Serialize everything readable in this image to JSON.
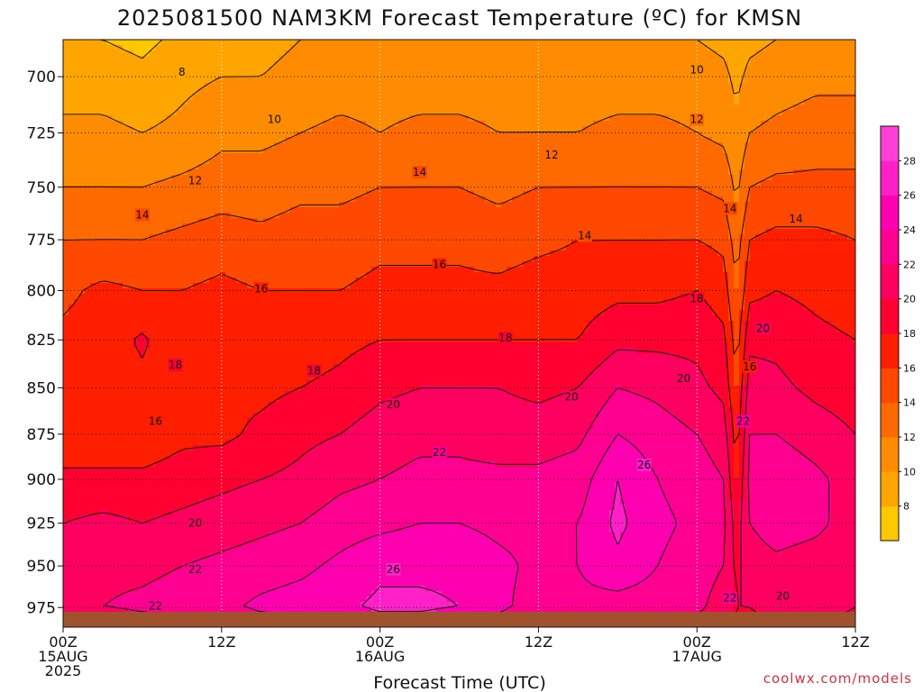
{
  "chart_data": {
    "type": "heatmap",
    "title": "2025081500 NAM3KM Forecast Temperature (ºC) for KMSN",
    "xlabel": "Forecast Time (UTC)",
    "ylabel": "",
    "credit": "coolwx.com/models",
    "x_ticks": [
      {
        "hour": 0,
        "lines": [
          "00Z",
          "15AUG",
          "2025"
        ]
      },
      {
        "hour": 12,
        "lines": [
          "12Z"
        ]
      },
      {
        "hour": 24,
        "lines": [
          "00Z",
          "16AUG"
        ]
      },
      {
        "hour": 36,
        "lines": [
          "12Z"
        ]
      },
      {
        "hour": 48,
        "lines": [
          "00Z",
          "17AUG"
        ]
      },
      {
        "hour": 60,
        "lines": [
          "12Z"
        ]
      }
    ],
    "xlim": [
      0,
      60
    ],
    "y_ticks": [
      700,
      725,
      750,
      775,
      800,
      825,
      850,
      875,
      900,
      925,
      950,
      975
    ],
    "ylim": [
      684,
      987
    ],
    "y_scale": "log-pressure",
    "colorbar_ticks": [
      8,
      10,
      12,
      14,
      16,
      18,
      20,
      22,
      24,
      26,
      28
    ],
    "colorbar_range": [
      6,
      30
    ],
    "colors": [
      "#ffc800",
      "#ffa500",
      "#ff8c00",
      "#ff6a00",
      "#ff4800",
      "#ff1e00",
      "#ff0030",
      "#ff0060",
      "#ff0090",
      "#ff00b0",
      "#ff20c8",
      "#ff40d8"
    ],
    "ground_color": "#a0522d",
    "temperature_profiles": [
      {
        "hour": 0,
        "p": [
          684,
          700,
          725,
          750,
          775,
          800,
          825,
          850,
          875,
          900,
          925,
          950,
          975,
          987
        ],
        "t": [
          8.0,
          9.0,
          10.5,
          12.0,
          14.0,
          15.5,
          16.5,
          17.0,
          16.5,
          18.5,
          20.0,
          21.0,
          22.0,
          20.0
        ]
      },
      {
        "hour": 3,
        "p": [
          684,
          700,
          725,
          750,
          775,
          800,
          825,
          850,
          875,
          900,
          925,
          950,
          975,
          987
        ],
        "t": [
          8.0,
          9.0,
          10.5,
          12.0,
          14.0,
          16.5,
          17.0,
          17.0,
          16.5,
          18.5,
          20.5,
          21.5,
          22.0,
          19.5
        ]
      },
      {
        "hour": 6,
        "p": [
          684,
          700,
          725,
          750,
          775,
          800,
          825,
          850,
          875,
          900,
          925,
          950,
          975,
          987
        ],
        "t": [
          7.5,
          8.5,
          10.0,
          12.0,
          14.0,
          16.0,
          18.3,
          17.5,
          16.5,
          18.5,
          20.0,
          21.5,
          22.5,
          20.0
        ]
      },
      {
        "hour": 9,
        "p": [
          684,
          700,
          725,
          750,
          775,
          800,
          825,
          850,
          875,
          900,
          925,
          950,
          975,
          987
        ],
        "t": [
          8.5,
          9.5,
          10.5,
          12.5,
          14.5,
          16.0,
          16.5,
          17.0,
          17.5,
          19.0,
          20.5,
          22.0,
          23.0,
          21.0
        ]
      },
      {
        "hour": 12,
        "p": [
          684,
          700,
          725,
          750,
          775,
          800,
          825,
          850,
          875,
          900,
          925,
          950,
          975,
          987
        ],
        "t": [
          9.0,
          10.0,
          11.5,
          13.0,
          15.0,
          16.5,
          17.0,
          17.5,
          17.5,
          19.5,
          21.0,
          22.5,
          23.5,
          22.0
        ]
      },
      {
        "hour": 15,
        "p": [
          684,
          700,
          725,
          750,
          775,
          800,
          825,
          850,
          875,
          900,
          925,
          950,
          975,
          987
        ],
        "t": [
          9.5,
          10.0,
          11.5,
          13.0,
          14.5,
          16.0,
          16.5,
          17.5,
          18.5,
          20.0,
          21.5,
          23.0,
          24.5,
          22.0
        ]
      },
      {
        "hour": 18,
        "p": [
          684,
          700,
          725,
          750,
          775,
          800,
          825,
          850,
          875,
          900,
          925,
          950,
          975,
          987
        ],
        "t": [
          10.0,
          10.5,
          12.0,
          13.5,
          15.0,
          16.0,
          17.0,
          18.0,
          19.5,
          20.5,
          22.0,
          23.5,
          25.0,
          23.0
        ]
      },
      {
        "hour": 21,
        "p": [
          684,
          700,
          725,
          750,
          775,
          800,
          825,
          850,
          875,
          900,
          925,
          950,
          975,
          987
        ],
        "t": [
          10.5,
          11.0,
          12.5,
          13.5,
          15.0,
          16.0,
          17.5,
          18.5,
          20.0,
          21.5,
          23.0,
          24.5,
          25.5,
          23.5
        ]
      },
      {
        "hour": 24,
        "p": [
          684,
          700,
          725,
          750,
          775,
          800,
          825,
          850,
          875,
          900,
          925,
          950,
          975,
          987
        ],
        "t": [
          10.0,
          11.0,
          12.0,
          14.0,
          15.5,
          16.5,
          18.0,
          19.5,
          21.0,
          22.0,
          23.5,
          25.5,
          26.5,
          24.0
        ]
      },
      {
        "hour": 27,
        "p": [
          684,
          700,
          725,
          750,
          775,
          800,
          825,
          850,
          875,
          900,
          925,
          950,
          975,
          987
        ],
        "t": [
          10.0,
          11.0,
          12.5,
          14.0,
          15.5,
          16.5,
          18.0,
          20.0,
          21.5,
          22.5,
          24.0,
          25.5,
          26.5,
          24.0
        ]
      },
      {
        "hour": 30,
        "p": [
          684,
          700,
          725,
          750,
          775,
          800,
          825,
          850,
          875,
          900,
          925,
          950,
          975,
          987
        ],
        "t": [
          10.0,
          11.0,
          12.5,
          14.0,
          15.5,
          16.5,
          18.0,
          20.0,
          21.5,
          22.5,
          24.0,
          25.5,
          26.0,
          23.5
        ]
      },
      {
        "hour": 33,
        "p": [
          684,
          700,
          725,
          750,
          775,
          800,
          825,
          850,
          875,
          900,
          925,
          950,
          975,
          987
        ],
        "t": [
          10.0,
          11.0,
          12.0,
          13.5,
          15.0,
          16.5,
          18.0,
          20.0,
          21.0,
          22.5,
          23.5,
          24.5,
          24.5,
          22.5
        ]
      },
      {
        "hour": 36,
        "p": [
          684,
          700,
          725,
          750,
          775,
          800,
          825,
          850,
          875,
          900,
          925,
          950,
          975,
          987
        ],
        "t": [
          10.0,
          11.0,
          12.0,
          14.0,
          15.5,
          17.0,
          18.0,
          19.5,
          21.0,
          22.5,
          23.5,
          23.5,
          23.0,
          21.5
        ]
      },
      {
        "hour": 39,
        "p": [
          684,
          700,
          725,
          750,
          775,
          800,
          825,
          850,
          875,
          900,
          925,
          950,
          975,
          987
        ],
        "t": [
          10.0,
          11.0,
          12.0,
          14.0,
          16.0,
          17.0,
          18.0,
          20.0,
          21.5,
          23.0,
          24.0,
          24.0,
          23.5,
          22.0
        ]
      },
      {
        "hour": 42,
        "p": [
          684,
          700,
          725,
          750,
          775,
          800,
          825,
          850,
          875,
          900,
          925,
          950,
          975,
          987
        ],
        "t": [
          10.0,
          11.0,
          12.5,
          14.0,
          16.0,
          17.5,
          19.5,
          22.0,
          24.0,
          26.0,
          26.5,
          25.5,
          23.0,
          22.0
        ]
      },
      {
        "hour": 45,
        "p": [
          684,
          700,
          725,
          750,
          775,
          800,
          825,
          850,
          875,
          900,
          925,
          950,
          975,
          987
        ],
        "t": [
          10.0,
          11.0,
          12.5,
          14.0,
          16.0,
          17.5,
          19.5,
          21.5,
          23.0,
          24.0,
          24.5,
          24.0,
          23.0,
          21.5
        ]
      },
      {
        "hour": 48,
        "p": [
          684,
          700,
          725,
          750,
          775,
          800,
          825,
          850,
          875,
          900,
          925,
          950,
          975,
          987
        ],
        "t": [
          10.0,
          11.0,
          12.0,
          14.0,
          16.0,
          18.0,
          19.5,
          20.5,
          22.0,
          23.0,
          23.5,
          23.0,
          22.5,
          21.0
        ]
      },
      {
        "hour": 50,
        "p": [
          684,
          700,
          725,
          750,
          775,
          800,
          825,
          850,
          875,
          900,
          925,
          950,
          975,
          987
        ],
        "t": [
          9.5,
          10.5,
          11.5,
          13.5,
          15.5,
          17.0,
          18.5,
          19.5,
          21.0,
          22.0,
          22.5,
          22.0,
          21.0,
          20.5
        ]
      },
      {
        "hour": 51,
        "p": [
          684,
          700,
          725,
          750,
          775,
          800,
          825,
          850,
          875,
          900,
          925,
          950,
          975,
          987
        ],
        "t": [
          9.0,
          9.5,
          10.5,
          11.5,
          13.0,
          14.0,
          15.0,
          16.0,
          17.0,
          18.0,
          19.0,
          19.5,
          20.0,
          19.5
        ]
      },
      {
        "hour": 52,
        "p": [
          684,
          700,
          725,
          750,
          775,
          800,
          825,
          850,
          875,
          900,
          925,
          950,
          975,
          987
        ],
        "t": [
          9.5,
          10.5,
          12.0,
          14.0,
          16.0,
          17.5,
          19.5,
          21.0,
          22.0,
          22.5,
          22.0,
          21.0,
          20.0,
          19.5
        ]
      },
      {
        "hour": 54,
        "p": [
          684,
          700,
          725,
          750,
          775,
          800,
          825,
          850,
          875,
          900,
          925,
          950,
          975,
          987
        ],
        "t": [
          10.0,
          11.0,
          12.5,
          14.5,
          16.5,
          18.0,
          19.5,
          20.5,
          22.0,
          23.5,
          23.0,
          21.5,
          20.5,
          20.0
        ]
      },
      {
        "hour": 57,
        "p": [
          684,
          700,
          725,
          750,
          775,
          800,
          825,
          850,
          875,
          900,
          925,
          950,
          975,
          987
        ],
        "t": [
          10.5,
          11.5,
          13.0,
          14.5,
          16.5,
          17.5,
          18.5,
          19.5,
          21.0,
          22.5,
          22.5,
          21.0,
          20.5,
          20.0
        ]
      },
      {
        "hour": 60,
        "p": [
          684,
          700,
          725,
          750,
          775,
          800,
          825,
          850,
          875,
          900,
          925,
          950,
          975,
          987
        ],
        "t": [
          11.0,
          11.5,
          13.0,
          14.5,
          16.0,
          17.0,
          18.0,
          19.0,
          20.0,
          21.0,
          21.0,
          20.5,
          20.0,
          19.5
        ]
      }
    ],
    "contour_labels": [
      {
        "text": "8",
        "hour": 9,
        "p": 698
      },
      {
        "text": "10",
        "hour": 16,
        "p": 719
      },
      {
        "text": "10",
        "hour": 48,
        "p": 697
      },
      {
        "text": "12",
        "hour": 48,
        "p": 719
      },
      {
        "text": "12",
        "hour": 37,
        "p": 735
      },
      {
        "text": "12",
        "hour": 10,
        "p": 747
      },
      {
        "text": "14",
        "hour": 6,
        "p": 763
      },
      {
        "text": "14",
        "hour": 27,
        "p": 743
      },
      {
        "text": "14",
        "hour": 39.5,
        "p": 773
      },
      {
        "text": "14",
        "hour": 50.5,
        "p": 760
      },
      {
        "text": "14",
        "hour": 55.5,
        "p": 765
      },
      {
        "text": "16",
        "hour": 28.5,
        "p": 787
      },
      {
        "text": "16",
        "hour": 15,
        "p": 799
      },
      {
        "text": "16",
        "hour": 7,
        "p": 868
      },
      {
        "text": "16",
        "hour": 52,
        "p": 839
      },
      {
        "text": "18",
        "hour": 8.5,
        "p": 838
      },
      {
        "text": "18",
        "hour": 19,
        "p": 841
      },
      {
        "text": "18",
        "hour": 33.5,
        "p": 824
      },
      {
        "text": "18",
        "hour": 48,
        "p": 804
      },
      {
        "text": "20",
        "hour": 25,
        "p": 859
      },
      {
        "text": "20",
        "hour": 38.5,
        "p": 855
      },
      {
        "text": "20",
        "hour": 47,
        "p": 845
      },
      {
        "text": "20",
        "hour": 53,
        "p": 819
      },
      {
        "text": "20",
        "hour": 10,
        "p": 925
      },
      {
        "text": "20",
        "hour": 54.5,
        "p": 968
      },
      {
        "text": "22",
        "hour": 28.5,
        "p": 885
      },
      {
        "text": "22",
        "hour": 51.5,
        "p": 868
      },
      {
        "text": "22",
        "hour": 10,
        "p": 952
      },
      {
        "text": "22",
        "hour": 7,
        "p": 974
      },
      {
        "text": "22",
        "hour": 50.5,
        "p": 969
      },
      {
        "text": "26",
        "hour": 44,
        "p": 892
      },
      {
        "text": "26",
        "hour": 25,
        "p": 952
      }
    ]
  }
}
